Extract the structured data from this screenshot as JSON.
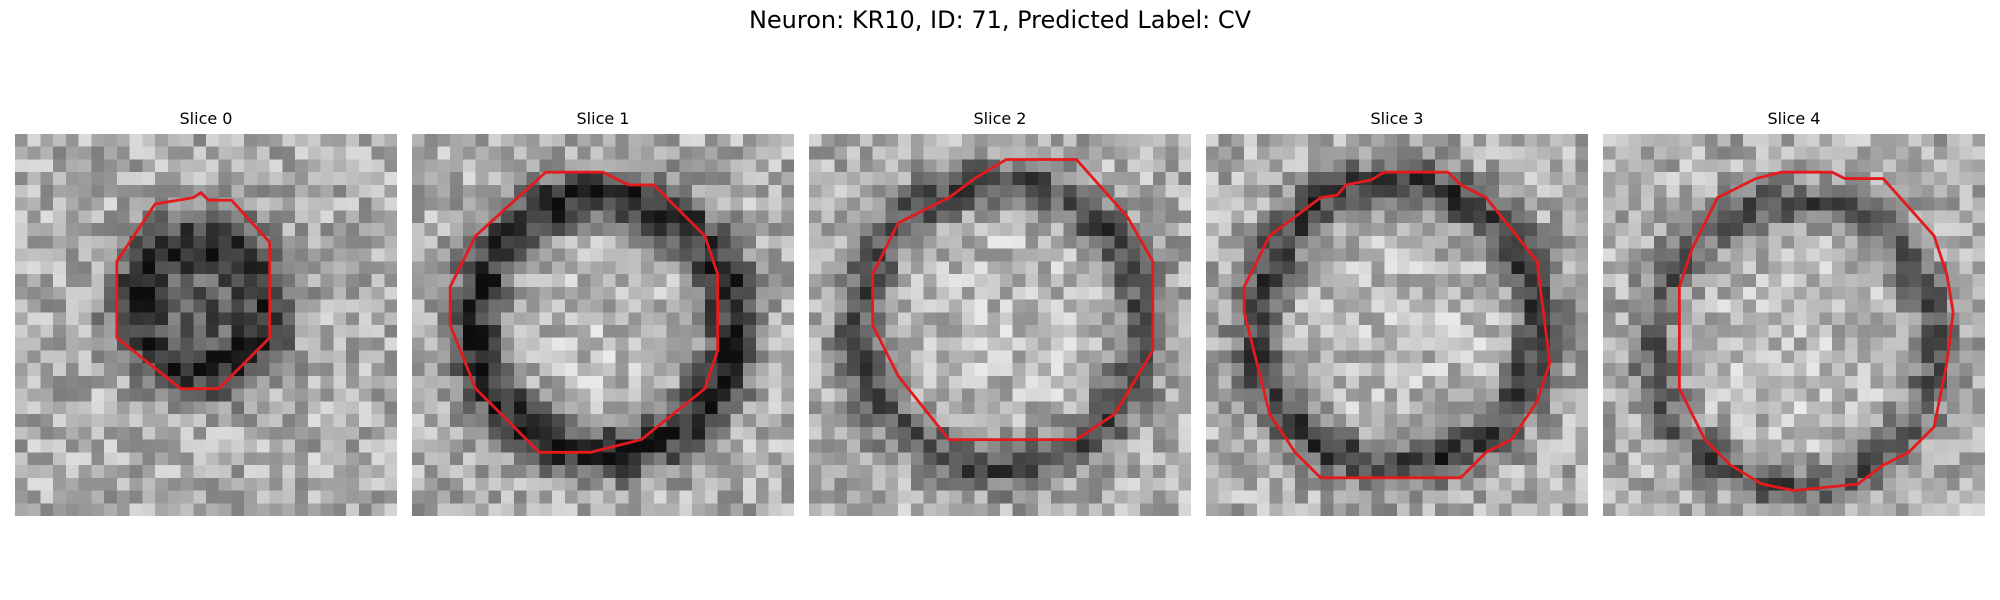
{
  "figure": {
    "title": "Neuron: KR10, ID: 71, Predicted Label: CV",
    "contour_color": "#e41a1c",
    "colormap": "gray"
  },
  "panels": [
    {
      "title": "Slice 0"
    },
    {
      "title": "Slice 1"
    },
    {
      "title": "Slice 2"
    },
    {
      "title": "Slice 3"
    },
    {
      "title": "Slice 4"
    }
  ]
}
